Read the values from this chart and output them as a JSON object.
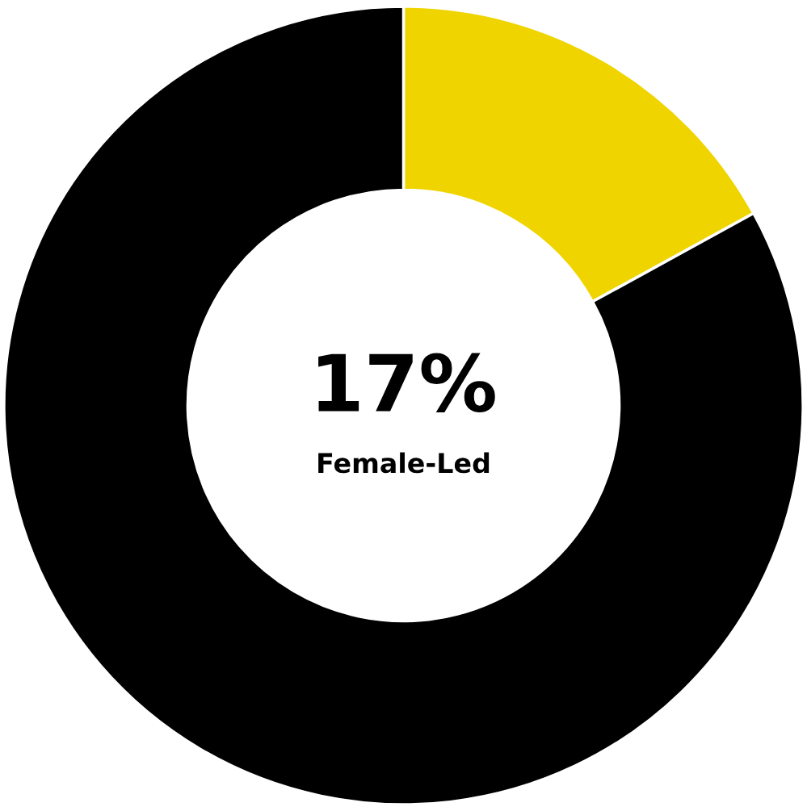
{
  "chart_data": {
    "type": "donut",
    "categories": [
      null,
      null
    ],
    "values": [
      17,
      83
    ],
    "colors": [
      "#f0d400",
      "#000000"
    ],
    "annotations": [
      "17%",
      "Female-Led"
    ]
  }
}
